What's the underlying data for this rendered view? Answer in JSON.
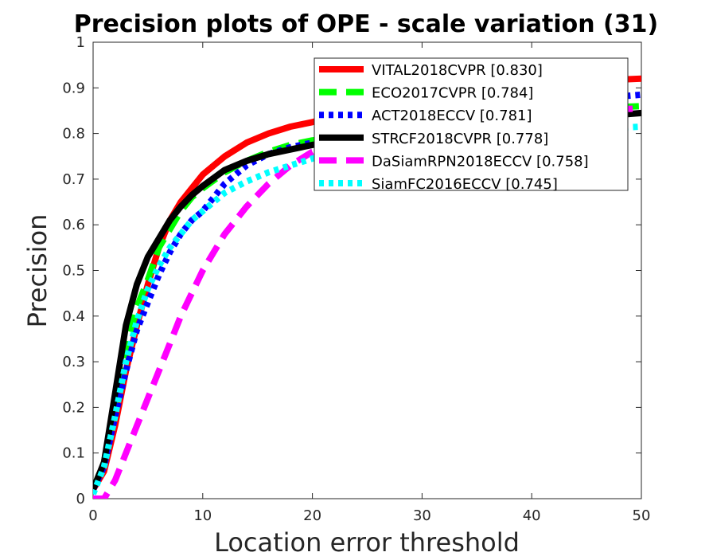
{
  "chart_data": {
    "type": "line",
    "title": "Precision plots of OPE - scale variation (31)",
    "xlabel": "Location error threshold",
    "ylabel": "Precision",
    "xlim": [
      0,
      50
    ],
    "ylim": [
      0,
      1
    ],
    "x_ticks": [
      "0",
      "10",
      "20",
      "30",
      "40",
      "50"
    ],
    "y_ticks": [
      "0",
      "0.1",
      "0.2",
      "0.3",
      "0.4",
      "0.5",
      "0.6",
      "0.7",
      "0.8",
      "0.9",
      "1"
    ],
    "grid": false,
    "legend_position": "top-right",
    "series": [
      {
        "name": "VITAL2018CVPR [0.830]",
        "color": "#ff0000",
        "style": "solid",
        "x": [
          0,
          1,
          2,
          3,
          4,
          5,
          6,
          7,
          8,
          9,
          10,
          12,
          14,
          16,
          18,
          20,
          25,
          30,
          35,
          40,
          45,
          50
        ],
        "y": [
          0.02,
          0.06,
          0.16,
          0.28,
          0.38,
          0.47,
          0.55,
          0.61,
          0.65,
          0.68,
          0.71,
          0.75,
          0.78,
          0.8,
          0.815,
          0.825,
          0.86,
          0.88,
          0.895,
          0.905,
          0.915,
          0.92
        ]
      },
      {
        "name": "ECO2017CVPR [0.784]",
        "color": "#00ff00",
        "style": "dashed",
        "x": [
          0,
          1,
          2,
          3,
          4,
          5,
          6,
          7,
          8,
          9,
          10,
          12,
          14,
          16,
          18,
          20,
          25,
          30,
          35,
          40,
          45,
          50
        ],
        "y": [
          0.02,
          0.08,
          0.21,
          0.33,
          0.42,
          0.48,
          0.55,
          0.59,
          0.63,
          0.66,
          0.68,
          0.715,
          0.74,
          0.76,
          0.775,
          0.785,
          0.8,
          0.82,
          0.835,
          0.845,
          0.855,
          0.86
        ]
      },
      {
        "name": "ACT2018ECCV [0.781]",
        "color": "#0000ff",
        "style": "dotted",
        "x": [
          0,
          1,
          2,
          3,
          4,
          5,
          6,
          7,
          8,
          9,
          10,
          12,
          14,
          16,
          18,
          20,
          25,
          30,
          35,
          40,
          45,
          50
        ],
        "y": [
          0.02,
          0.07,
          0.18,
          0.28,
          0.37,
          0.43,
          0.49,
          0.54,
          0.58,
          0.61,
          0.63,
          0.69,
          0.73,
          0.755,
          0.77,
          0.78,
          0.81,
          0.835,
          0.85,
          0.865,
          0.875,
          0.885
        ]
      },
      {
        "name": "STRCF2018CVPR [0.778]",
        "color": "#000000",
        "style": "solid",
        "x": [
          0,
          1,
          2,
          3,
          4,
          5,
          6,
          7,
          8,
          9,
          10,
          12,
          14,
          16,
          18,
          20,
          25,
          30,
          35,
          40,
          45,
          50
        ],
        "y": [
          0.02,
          0.08,
          0.23,
          0.38,
          0.47,
          0.53,
          0.57,
          0.61,
          0.64,
          0.665,
          0.685,
          0.72,
          0.74,
          0.755,
          0.765,
          0.775,
          0.79,
          0.8,
          0.815,
          0.825,
          0.835,
          0.845
        ]
      },
      {
        "name": "DaSiamRPN2018ECCV [0.758]",
        "color": "#ff00ff",
        "style": "dashed",
        "x": [
          0,
          1,
          2,
          3,
          4,
          5,
          6,
          7,
          8,
          9,
          10,
          12,
          14,
          16,
          18,
          20,
          25,
          30,
          35,
          40,
          45,
          50
        ],
        "y": [
          0.0,
          0.0,
          0.04,
          0.1,
          0.16,
          0.22,
          0.28,
          0.34,
          0.4,
          0.45,
          0.5,
          0.58,
          0.64,
          0.69,
          0.73,
          0.76,
          0.8,
          0.82,
          0.835,
          0.845,
          0.85,
          0.855
        ]
      },
      {
        "name": "SiamFC2016ECCV [0.745]",
        "color": "#00ffff",
        "style": "dotted",
        "x": [
          0,
          1,
          2,
          3,
          4,
          5,
          6,
          7,
          8,
          9,
          10,
          12,
          14,
          16,
          18,
          20,
          25,
          30,
          35,
          40,
          45,
          50
        ],
        "y": [
          0.01,
          0.07,
          0.18,
          0.3,
          0.39,
          0.46,
          0.51,
          0.55,
          0.58,
          0.61,
          0.63,
          0.67,
          0.695,
          0.715,
          0.73,
          0.745,
          0.77,
          0.785,
          0.795,
          0.8,
          0.81,
          0.815
        ]
      }
    ]
  }
}
